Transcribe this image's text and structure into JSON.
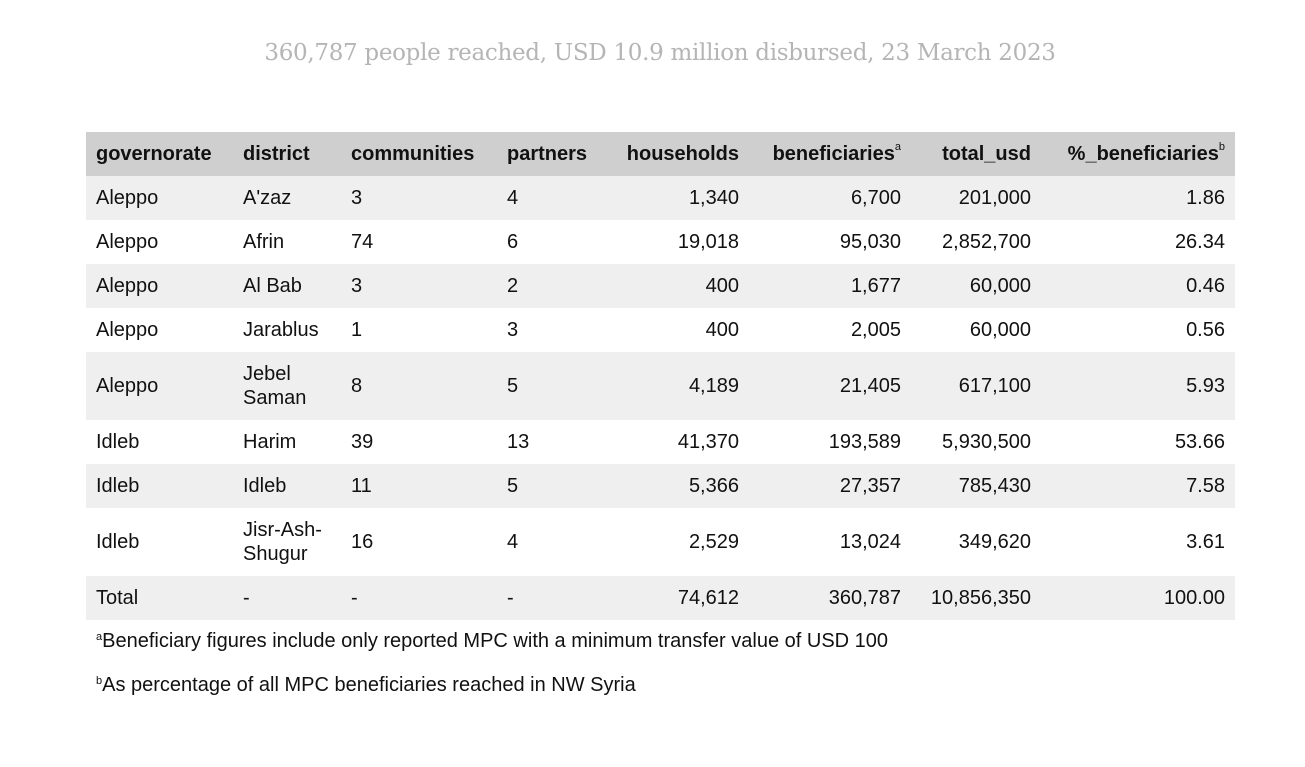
{
  "subtitle": "360,787 people reached, USD 10.9 million disbursed, 23 March 2023",
  "columns": {
    "governorate": "governorate",
    "district": "district",
    "communities": "communities",
    "partners": "partners",
    "households": "households",
    "beneficiaries": "beneficiaries",
    "beneficiaries_sup": "a",
    "total_usd": "total_usd",
    "pct_beneficiaries": "%_beneficiaries",
    "pct_beneficiaries_sup": "b"
  },
  "rows": [
    {
      "governorate": "Aleppo",
      "district": "A'zaz",
      "communities": "3",
      "partners": "4",
      "households": "1,340",
      "beneficiaries": "6,700",
      "total_usd": "201,000",
      "pct_beneficiaries": "1.86"
    },
    {
      "governorate": "Aleppo",
      "district": "Afrin",
      "communities": "74",
      "partners": "6",
      "households": "19,018",
      "beneficiaries": "95,030",
      "total_usd": "2,852,700",
      "pct_beneficiaries": "26.34"
    },
    {
      "governorate": "Aleppo",
      "district": "Al Bab",
      "communities": "3",
      "partners": "2",
      "households": "400",
      "beneficiaries": "1,677",
      "total_usd": "60,000",
      "pct_beneficiaries": "0.46"
    },
    {
      "governorate": "Aleppo",
      "district": "Jarablus",
      "communities": "1",
      "partners": "3",
      "households": "400",
      "beneficiaries": "2,005",
      "total_usd": "60,000",
      "pct_beneficiaries": "0.56"
    },
    {
      "governorate": "Aleppo",
      "district": "Jebel Saman",
      "communities": "8",
      "partners": "5",
      "households": "4,189",
      "beneficiaries": "21,405",
      "total_usd": "617,100",
      "pct_beneficiaries": "5.93"
    },
    {
      "governorate": "Idleb",
      "district": "Harim",
      "communities": "39",
      "partners": "13",
      "households": "41,370",
      "beneficiaries": "193,589",
      "total_usd": "5,930,500",
      "pct_beneficiaries": "53.66"
    },
    {
      "governorate": "Idleb",
      "district": "Idleb",
      "communities": "11",
      "partners": "5",
      "households": "5,366",
      "beneficiaries": "27,357",
      "total_usd": "785,430",
      "pct_beneficiaries": "7.58"
    },
    {
      "governorate": "Idleb",
      "district": "Jisr-Ash-Shugur",
      "communities": "16",
      "partners": "4",
      "households": "2,529",
      "beneficiaries": "13,024",
      "total_usd": "349,620",
      "pct_beneficiaries": "3.61"
    }
  ],
  "total_row": {
    "governorate": "Total",
    "district": "-",
    "communities": "-",
    "partners": "-",
    "households": "74,612",
    "beneficiaries": "360,787",
    "total_usd": "10,856,350",
    "pct_beneficiaries": "100.00"
  },
  "footnotes": [
    {
      "mark": "a",
      "text": "Beneficiary figures include only reported MPC with a minimum transfer value of USD 100"
    },
    {
      "mark": "b",
      "text": "As percentage of all MPC beneficiaries reached in NW Syria"
    }
  ]
}
